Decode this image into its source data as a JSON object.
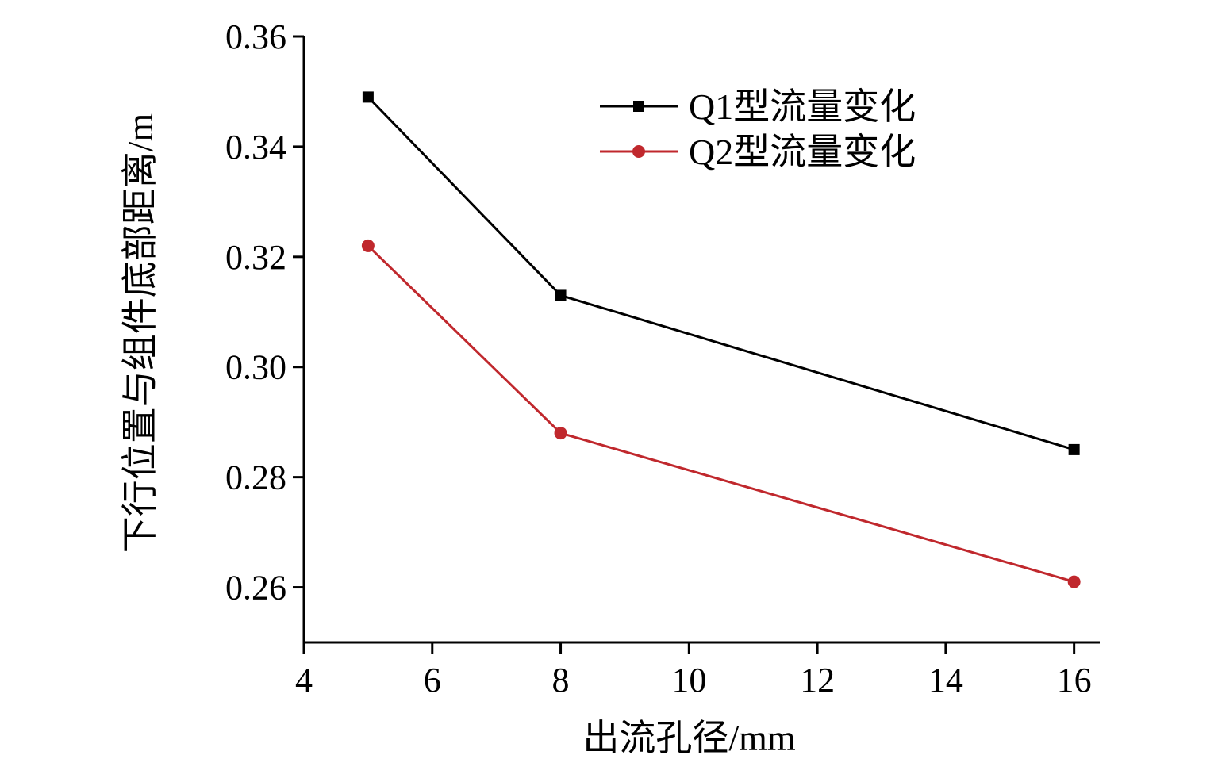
{
  "chart_data": {
    "type": "line",
    "xlabel": "出流孔径/mm",
    "ylabel": "下行位置与组件底部距离/m",
    "xlim": [
      4,
      16.4
    ],
    "ylim": [
      0.25,
      0.36
    ],
    "xticks": [
      4,
      6,
      8,
      10,
      12,
      14,
      16
    ],
    "yticks": [
      0.26,
      0.28,
      0.3,
      0.32,
      0.34,
      0.36
    ],
    "xtick_labels": [
      "4",
      "6",
      "8",
      "10",
      "12",
      "14",
      "16"
    ],
    "ytick_labels": [
      "0.26",
      "0.28",
      "0.30",
      "0.32",
      "0.34",
      "0.36"
    ],
    "legend_position": "top-right",
    "grid": false,
    "series": [
      {
        "name": "Q1型流量变化",
        "color": "#000000",
        "marker": "square",
        "x": [
          5,
          8,
          16
        ],
        "y": [
          0.349,
          0.313,
          0.285
        ]
      },
      {
        "name": "Q2型流量变化",
        "color": "#c0282d",
        "marker": "circle",
        "x": [
          5,
          8,
          16
        ],
        "y": [
          0.322,
          0.288,
          0.261
        ]
      }
    ]
  }
}
